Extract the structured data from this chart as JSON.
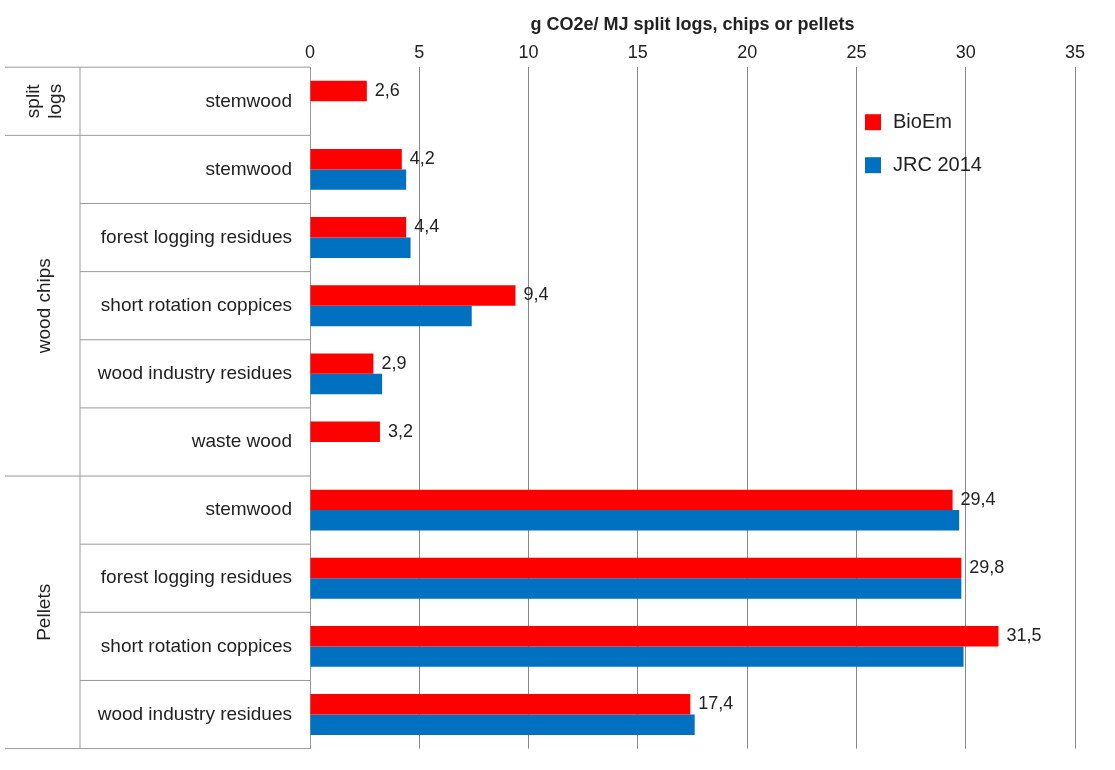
{
  "chart_data": {
    "type": "bar",
    "orientation": "horizontal",
    "xlabel": "g CO2e/ MJ split logs, chips or pellets",
    "categories": [
      "stemwood",
      "stemwood",
      "forest logging residues",
      "short rotation coppices",
      "wood industry residues",
      "waste wood",
      "stemwood",
      "forest logging residues",
      "short rotation coppices",
      "wood industry residues"
    ],
    "series": [
      {
        "name": "BioEm",
        "color": "#ff0000",
        "values": [
          2.6,
          4.2,
          4.4,
          9.4,
          2.9,
          3.2,
          29.4,
          29.8,
          31.5,
          17.4
        ],
        "value_labels": [
          "2,6",
          "4,2",
          "4,4",
          "9,4",
          "2,9",
          "3,2",
          "29,4",
          "29,8",
          "31,5",
          "17,4"
        ]
      },
      {
        "name": "JRC 2014",
        "color": "#0070c0",
        "values": [
          null,
          4.4,
          4.6,
          7.4,
          3.3,
          null,
          29.7,
          29.8,
          29.9,
          17.6
        ]
      }
    ],
    "xlim": [
      0,
      35
    ],
    "xticks": [
      0,
      5,
      10,
      15,
      20,
      25,
      30,
      35
    ],
    "grid": "x",
    "legend": "top right",
    "annotations": [
      "split logs",
      "wood chips",
      "Pellets"
    ]
  }
}
